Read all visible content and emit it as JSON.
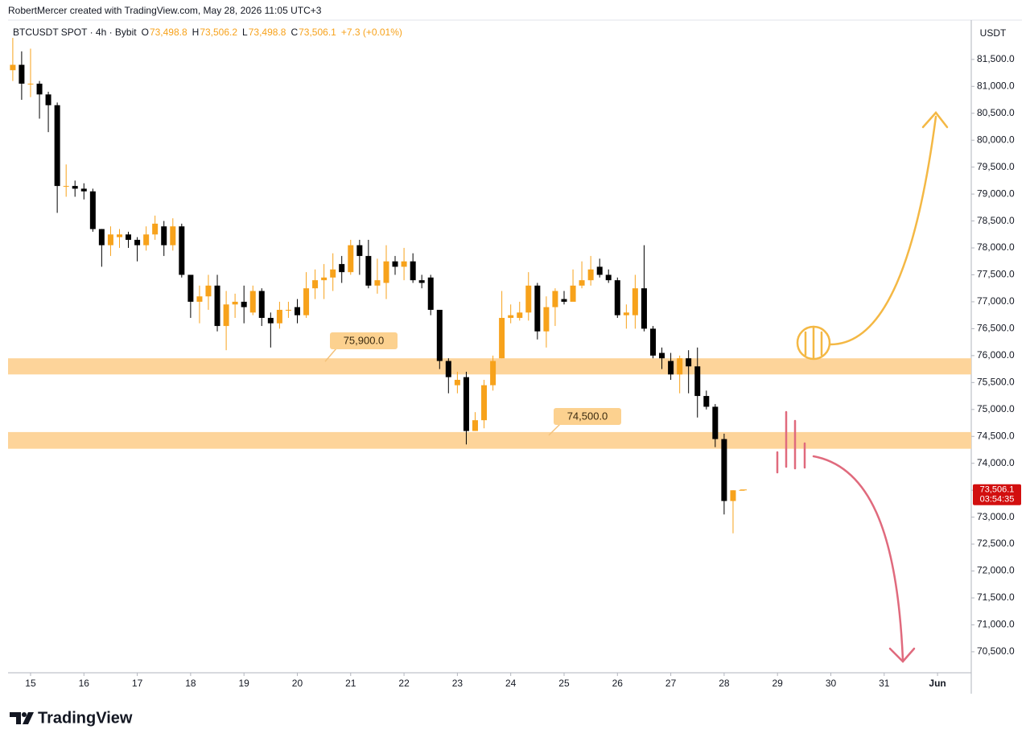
{
  "header": {
    "credit": "RobertMercer created with TradingView.com, May 28, 2026 11:05 UTC+3",
    "symbol": "BTCUSDT SPOT · 4h · Bybit",
    "ohlc": [
      {
        "key": "O",
        "value": "73,498.8"
      },
      {
        "key": "H",
        "value": "73,506.2"
      },
      {
        "key": "L",
        "value": "73,498.8"
      },
      {
        "key": "C",
        "value": "73,506.1"
      }
    ],
    "change": "+7.3 (+0.01%)"
  },
  "chart_data": {
    "type": "candlestick",
    "currency": "USDT",
    "x": [
      14.667,
      14.833,
      15,
      15.167,
      15.333,
      15.5,
      15.667,
      15.833,
      16,
      16.167,
      16.333,
      16.5,
      16.667,
      16.833,
      17,
      17.167,
      17.333,
      17.5,
      17.667,
      17.833,
      18,
      18.167,
      18.333,
      18.5,
      18.667,
      18.833,
      19,
      19.167,
      19.333,
      19.5,
      19.667,
      19.833,
      20,
      20.167,
      20.333,
      20.5,
      20.667,
      20.833,
      21,
      21.167,
      21.333,
      21.5,
      21.667,
      21.833,
      22,
      22.167,
      22.333,
      22.5,
      22.667,
      22.833,
      23,
      23.167,
      23.333,
      23.5,
      23.667,
      23.833,
      24,
      24.167,
      24.333,
      24.5,
      24.667,
      24.833,
      25,
      25.167,
      25.333,
      25.5,
      25.667,
      25.833,
      26,
      26.167,
      26.333,
      26.5,
      26.667,
      26.833,
      27,
      27.167,
      27.333,
      27.5,
      27.667,
      27.833,
      28,
      28.167,
      28.333
    ],
    "open": [
      81300,
      81400,
      81050,
      81050,
      80850,
      80650,
      79150,
      79150,
      79100,
      79050,
      78350,
      78050,
      78200,
      78250,
      78150,
      78050,
      78250,
      78400,
      78050,
      78400,
      77500,
      77000,
      77100,
      77300,
      76550,
      76950,
      77000,
      76800,
      77200,
      76700,
      76600,
      76850,
      76900,
      76750,
      77250,
      77400,
      77450,
      77700,
      77550,
      78050,
      77850,
      77300,
      77350,
      77750,
      77650,
      77750,
      77400,
      77450,
      76850,
      75900,
      75450,
      75600,
      74600,
      74800,
      75450,
      75950,
      76700,
      76700,
      76800,
      77300,
      76450,
      76900,
      77050,
      77000,
      77300,
      77400,
      77650,
      77500,
      77400,
      76750,
      76750,
      77250,
      76500,
      76050,
      75900,
      75650,
      75950,
      75800,
      75250,
      75050,
      74450,
      73300,
      73498.8
    ],
    "high": [
      81900,
      81650,
      81700,
      81100,
      80900,
      80700,
      79550,
      79250,
      79200,
      79100,
      78350,
      78400,
      78350,
      78300,
      78200,
      78400,
      78600,
      78500,
      78550,
      78450,
      77500,
      77300,
      77500,
      77500,
      77200,
      77150,
      77300,
      77300,
      77250,
      76800,
      77000,
      77000,
      77050,
      77550,
      77600,
      77700,
      77900,
      77850,
      78150,
      78150,
      78150,
      77800,
      78050,
      77850,
      78000,
      77900,
      77500,
      77500,
      76850,
      75950,
      75700,
      75700,
      74950,
      75550,
      76000,
      77200,
      76950,
      77000,
      77550,
      77350,
      77100,
      77250,
      77200,
      77600,
      77750,
      77850,
      77800,
      77600,
      77450,
      76950,
      77500,
      78050,
      76550,
      76150,
      76050,
      76000,
      76100,
      76150,
      75350,
      75100,
      74550,
      73500,
      73506.2
    ],
    "low": [
      81100,
      80750,
      80800,
      80400,
      80150,
      78650,
      78950,
      78950,
      78900,
      78300,
      77650,
      77850,
      78000,
      78000,
      77750,
      77950,
      78150,
      77850,
      77950,
      77450,
      76700,
      76600,
      76850,
      76450,
      76100,
      76700,
      76600,
      76750,
      76550,
      76150,
      76500,
      76700,
      76600,
      76700,
      77050,
      77050,
      77200,
      77350,
      77500,
      77500,
      77250,
      77150,
      77050,
      77500,
      77400,
      77350,
      77250,
      76750,
      75750,
      75300,
      75300,
      74350,
      74600,
      74650,
      75350,
      75950,
      76600,
      76650,
      76650,
      76300,
      76150,
      76550,
      76950,
      77050,
      77250,
      77300,
      77450,
      77350,
      76700,
      76500,
      76500,
      76450,
      75950,
      75750,
      75550,
      75300,
      75300,
      74850,
      75000,
      74300,
      73050,
      72700,
      73498.8
    ],
    "close": [
      81400,
      81050,
      81050,
      80850,
      80650,
      79150,
      79150,
      79100,
      79050,
      78350,
      78050,
      78250,
      78250,
      78150,
      78050,
      78250,
      78450,
      78050,
      78400,
      77500,
      77000,
      77100,
      77300,
      76550,
      76950,
      77000,
      76900,
      77200,
      76700,
      76600,
      76850,
      76850,
      76750,
      77250,
      77400,
      77450,
      77600,
      77550,
      78050,
      77850,
      77300,
      77400,
      77750,
      77650,
      77750,
      77400,
      77350,
      76850,
      75900,
      75600,
      75550,
      74600,
      74800,
      75450,
      75900,
      76700,
      76750,
      76800,
      77300,
      76450,
      76900,
      77200,
      77000,
      77300,
      77400,
      77600,
      77500,
      77400,
      76750,
      76800,
      77250,
      76500,
      76000,
      75950,
      75650,
      75950,
      75800,
      75250,
      75050,
      74450,
      73300,
      73498.8,
      73506.1
    ],
    "up_color": "#f7a21b",
    "down_color": "#000000",
    "xlim": [
      14.578,
      32.632
    ],
    "xticks": [
      15,
      16,
      17,
      18,
      19,
      20,
      21,
      22,
      23,
      24,
      25,
      26,
      27,
      28,
      29,
      30,
      31,
      {
        "value": 32,
        "label": "Jun"
      }
    ],
    "ylim": [
      70110,
      82230
    ],
    "yticks": [
      {
        "value": 70500,
        "label": "70,500.0"
      },
      {
        "value": 71000,
        "label": "71,000.0"
      },
      {
        "value": 71500,
        "label": "71,500.0"
      },
      {
        "value": 72000,
        "label": "72,000.0"
      },
      {
        "value": 72500,
        "label": "72,500.0"
      },
      {
        "value": 73000,
        "label": "73,000.0"
      },
      {
        "value": 73500,
        "label": "73,500.0"
      },
      {
        "value": 74000,
        "label": "74,000.0"
      },
      {
        "value": 74500,
        "label": "74,500.0"
      },
      {
        "value": 75000,
        "label": "75,000.0"
      },
      {
        "value": 75500,
        "label": "75,500.0"
      },
      {
        "value": 76000,
        "label": "76,000.0"
      },
      {
        "value": 76500,
        "label": "76,500.0"
      },
      {
        "value": 77000,
        "label": "77,000.0"
      },
      {
        "value": 77500,
        "label": "77,500.0"
      },
      {
        "value": 78000,
        "label": "78,000.0"
      },
      {
        "value": 78500,
        "label": "78,500.0"
      },
      {
        "value": 79000,
        "label": "79,000.0"
      },
      {
        "value": 79500,
        "label": "79,500.0"
      },
      {
        "value": 80000,
        "label": "80,000.0"
      },
      {
        "value": 80500,
        "label": "80,500.0"
      },
      {
        "value": 81000,
        "label": "81,000.0"
      },
      {
        "value": 81500,
        "label": "81,500.0"
      }
    ],
    "grid": false,
    "zones": [
      {
        "label": "75,900.0",
        "range": [
          75650,
          75950
        ],
        "color": "#fdd49a"
      },
      {
        "label": "74,500.0",
        "range": [
          74270,
          74580
        ],
        "color": "#fdd49a"
      }
    ],
    "last_price": {
      "label": "73,506.1",
      "countdown": "03:54:35",
      "color": "#d20f0f"
    }
  },
  "footer": {
    "brand": "TradingView"
  }
}
